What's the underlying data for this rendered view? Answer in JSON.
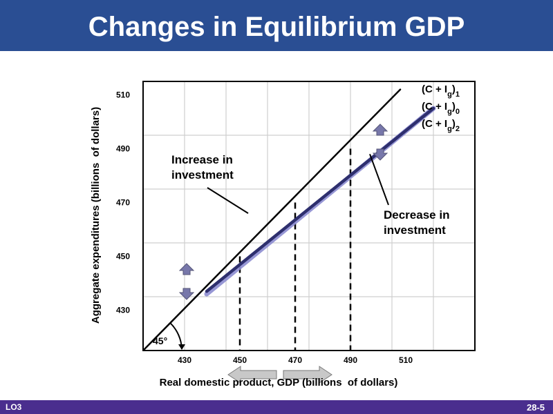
{
  "header": {
    "title": "Changes in Equilibrium GDP"
  },
  "footer": {
    "left_label": "LO3",
    "right_label": "28-5"
  },
  "chart_data": {
    "type": "line",
    "title": "Changes in Equilibrium GDP",
    "xlabel": "Real domestic product, GDP (billions  of dollars)",
    "ylabel": "Aggregate expenditures (billions  of dollars)",
    "xlim": [
      415,
      535
    ],
    "ylim": [
      415,
      515
    ],
    "x_ticks": [
      430,
      450,
      470,
      490,
      510
    ],
    "y_ticks": [
      430,
      450,
      470,
      490,
      510
    ],
    "grid": true,
    "colors": {
      "guide_line": "#000000",
      "spending_line": "#2e2f6e",
      "spending_line_faded": "#8c8cd0",
      "arrow_up": "#7777aa",
      "arrow_left_right": "#c8c8c8"
    },
    "series": [
      {
        "name": "45°",
        "x": [
          415,
          508
        ],
        "y": [
          415,
          512
        ]
      },
      {
        "name": "(C + Ig)1",
        "x": [
          438,
          520
        ],
        "y": [
          436,
          505
        ]
      },
      {
        "name": "(C + Ig)0",
        "x": [
          438,
          520
        ],
        "y": [
          437,
          505
        ]
      },
      {
        "name": "(C + Ig)2",
        "x": [
          438,
          520
        ],
        "y": [
          437,
          505
        ]
      }
    ],
    "legend": [
      {
        "base": "(C + I",
        "sub": "g",
        "tail": ")",
        "index": "1"
      },
      {
        "base": "(C + I",
        "sub": "g",
        "tail": ")",
        "index": "0"
      },
      {
        "base": "(C + I",
        "sub": "g",
        "tail": ")",
        "index": "2"
      }
    ],
    "equilibria": [
      {
        "x": 450,
        "y": 450
      },
      {
        "x": 470,
        "y": 470
      },
      {
        "x": 490,
        "y": 490
      }
    ],
    "angle_label": "45°",
    "annotations": [
      {
        "lines": [
          "Increase in",
          "investment"
        ],
        "pointer_to": {
          "x": 453,
          "y": 466
        }
      },
      {
        "lines": [
          "Decrease in",
          "investment"
        ],
        "pointer_to": {
          "x": 497,
          "y": 488
        }
      }
    ]
  }
}
